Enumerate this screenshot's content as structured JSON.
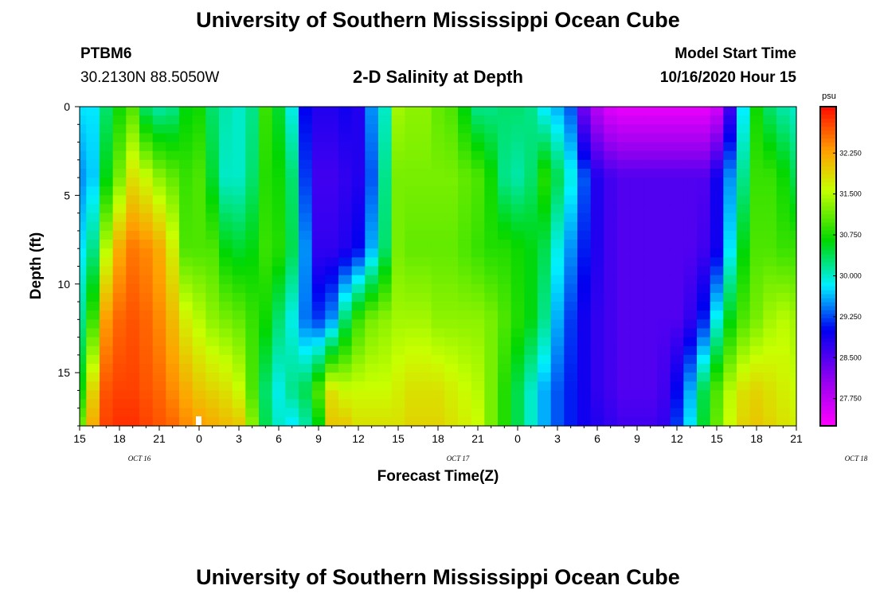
{
  "header": {
    "title": "University of Southern Mississippi Ocean Cube",
    "station": "PTBM6",
    "coordinates": "30.2130N 88.5050W",
    "plot_title": "2-D Salinity at Depth",
    "start_label": "Model Start Time",
    "start_value": "10/16/2020 Hour 15"
  },
  "footer": {
    "title": "University of Southern Mississippi Ocean Cube"
  },
  "chart_data": {
    "type": "heatmap",
    "title": "2-D Salinity at Depth",
    "xlabel": "Forecast Time(Z)",
    "ylabel": "Depth (ft)",
    "units": "psu",
    "x_tick_labels": [
      "15",
      "18",
      "21",
      "0",
      "3",
      "6",
      "9",
      "12",
      "15",
      "18",
      "21",
      "0",
      "3",
      "6",
      "9",
      "12",
      "15",
      "18",
      "21"
    ],
    "date_labels": [
      {
        "label": "OCT 16",
        "hour": 4.5
      },
      {
        "label": "OCT 17",
        "hour": 28.5
      },
      {
        "label": "OCT 18",
        "hour": 58.5
      }
    ],
    "xlim_hours": [
      0,
      54
    ],
    "y_ticks": [
      0,
      5,
      10,
      15
    ],
    "ylim": [
      0,
      18
    ],
    "colorbar": {
      "range": [
        27.25,
        33.1
      ],
      "ticks": [
        "32.250",
        "31.500",
        "30.750",
        "30.000",
        "29.250",
        "28.500",
        "27.750"
      ]
    },
    "salinity_grid": {
      "depths_ft": [
        0,
        4,
        8,
        12,
        16,
        18
      ],
      "hours": [
        0,
        1,
        2,
        3,
        4,
        5,
        6,
        7,
        8,
        9,
        10,
        11,
        12,
        13,
        14,
        15,
        16,
        17,
        18,
        19,
        20,
        21,
        22,
        23,
        24,
        25,
        26,
        27,
        28,
        29,
        30,
        31,
        32,
        33,
        34,
        35,
        36,
        37,
        38,
        39,
        40,
        41,
        42,
        43,
        44,
        45,
        46,
        47,
        48,
        49,
        50,
        51,
        52,
        53,
        54
      ],
      "rows": [
        [
          29.8,
          29.8,
          30.3,
          30.7,
          31.0,
          30.3,
          30.1,
          30.2,
          30.6,
          30.7,
          30.3,
          30.1,
          30.0,
          30.2,
          30.9,
          30.5,
          29.9,
          29.0,
          28.8,
          28.8,
          28.9,
          28.8,
          29.5,
          30.0,
          31.4,
          31.3,
          31.3,
          31.1,
          31.0,
          30.6,
          30.2,
          30.2,
          30.3,
          30.3,
          30.2,
          29.8,
          29.6,
          29.3,
          28.3,
          27.8,
          27.5,
          27.4,
          27.4,
          27.4,
          27.4,
          27.4,
          27.4,
          27.4,
          27.6,
          28.6,
          29.8,
          30.7,
          30.3,
          30.1,
          30.0
        ],
        [
          29.5,
          29.7,
          30.6,
          31.2,
          31.8,
          31.6,
          31.3,
          31.1,
          30.9,
          31.0,
          30.5,
          30.0,
          30.0,
          30.3,
          30.8,
          30.7,
          30.3,
          29.2,
          28.6,
          28.6,
          28.7,
          28.8,
          29.3,
          30.2,
          31.2,
          31.2,
          31.2,
          31.2,
          31.2,
          31.1,
          31.0,
          30.7,
          30.2,
          30.1,
          30.3,
          30.8,
          30.4,
          29.9,
          29.3,
          28.8,
          28.6,
          28.5,
          28.5,
          28.5,
          28.5,
          28.5,
          28.5,
          28.5,
          28.9,
          29.5,
          30.2,
          30.9,
          30.9,
          30.7,
          30.4
        ],
        [
          29.8,
          30.2,
          31.5,
          32.2,
          32.5,
          32.4,
          32.2,
          31.7,
          31.0,
          31.0,
          31.0,
          30.6,
          30.5,
          30.6,
          30.9,
          30.8,
          30.4,
          29.5,
          28.7,
          28.7,
          28.8,
          29.0,
          29.6,
          30.3,
          31.2,
          31.1,
          31.1,
          31.1,
          31.1,
          31.0,
          30.9,
          30.8,
          30.8,
          30.7,
          30.6,
          30.4,
          29.9,
          29.5,
          29.1,
          28.8,
          28.6,
          28.5,
          28.5,
          28.5,
          28.5,
          28.5,
          28.5,
          28.6,
          28.9,
          29.8,
          30.6,
          31.0,
          31.0,
          30.9,
          30.9
        ],
        [
          30.2,
          30.9,
          32.3,
          32.6,
          32.7,
          32.6,
          32.4,
          32.1,
          31.7,
          31.5,
          31.3,
          31.2,
          31.1,
          30.9,
          30.7,
          30.3,
          29.9,
          29.4,
          29.2,
          29.5,
          30.3,
          30.9,
          31.2,
          31.3,
          31.4,
          31.4,
          31.4,
          31.3,
          31.3,
          31.3,
          31.3,
          31.2,
          31.0,
          30.8,
          30.6,
          30.2,
          29.6,
          29.2,
          28.9,
          28.7,
          28.6,
          28.5,
          28.5,
          28.5,
          28.5,
          28.5,
          28.7,
          29.1,
          29.9,
          30.6,
          31.0,
          31.2,
          31.4,
          31.5,
          31.4
        ],
        [
          30.7,
          31.9,
          32.7,
          32.8,
          32.8,
          32.7,
          32.6,
          32.4,
          32.2,
          32.0,
          31.9,
          31.8,
          31.6,
          31.0,
          30.3,
          29.9,
          30.2,
          30.4,
          31.0,
          31.8,
          31.6,
          31.6,
          31.6,
          31.6,
          31.7,
          31.8,
          31.8,
          31.8,
          31.7,
          31.6,
          31.5,
          31.2,
          30.8,
          30.4,
          30.0,
          29.6,
          29.3,
          29.1,
          28.9,
          28.7,
          28.6,
          28.5,
          28.5,
          28.5,
          28.6,
          29.0,
          29.6,
          30.4,
          31.0,
          31.5,
          31.8,
          31.9,
          31.8,
          31.7,
          31.6
        ],
        [
          31.2,
          32.2,
          32.8,
          32.9,
          32.9,
          32.8,
          32.7,
          32.6,
          32.4,
          32.3,
          32.2,
          32.1,
          32.0,
          31.3,
          30.4,
          30.0,
          29.8,
          30.1,
          30.6,
          32.0,
          32.0,
          31.8,
          31.8,
          31.8,
          31.8,
          31.9,
          31.9,
          31.9,
          31.8,
          31.7,
          31.6,
          31.2,
          30.8,
          30.4,
          30.0,
          29.6,
          29.3,
          29.1,
          28.9,
          28.8,
          28.7,
          28.6,
          28.6,
          28.6,
          28.7,
          29.2,
          29.8,
          30.5,
          31.1,
          31.6,
          31.9,
          32.0,
          31.9,
          31.8,
          31.7
        ]
      ]
    }
  }
}
